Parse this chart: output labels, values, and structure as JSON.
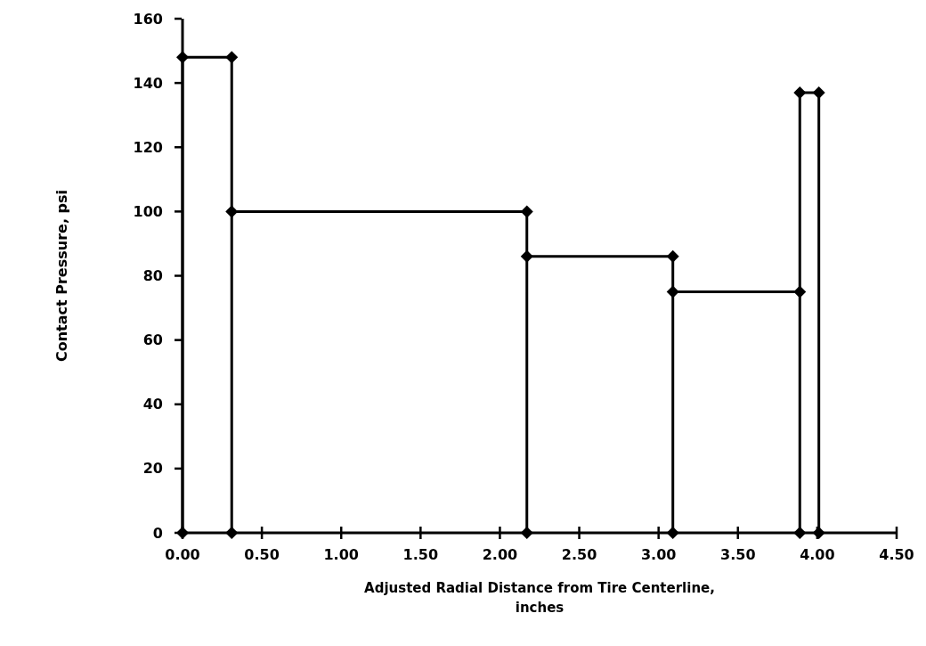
{
  "chart_data": {
    "type": "line",
    "xlabel": "Adjusted Radial Distance from Tire Centerline,\ninches",
    "ylabel": "Contact Pressure, psi",
    "x": [
      0,
      0,
      0.31,
      0.31,
      0.31,
      2.17,
      2.17,
      2.17,
      3.09,
      3.09,
      3.09,
      3.89,
      3.89,
      3.89,
      4.01,
      4.01
    ],
    "series": [
      {
        "color": "#000000",
        "values": [
          0,
          148,
          148,
          0,
          100,
          100,
          0,
          86,
          86,
          0,
          75,
          75,
          0,
          137,
          137,
          0
        ]
      }
    ],
    "xlim": [
      0,
      4.5
    ],
    "xticks": [
      {
        "value": 0,
        "label": "0.00"
      },
      {
        "value": 0.5,
        "label": "0.50"
      },
      {
        "value": 1,
        "label": "1.00"
      },
      {
        "value": 1.5,
        "label": "1.50"
      },
      {
        "value": 2,
        "label": "2.00"
      },
      {
        "value": 2.5,
        "label": "2.50"
      },
      {
        "value": 3,
        "label": "3.00"
      },
      {
        "value": 3.5,
        "label": "3.50"
      },
      {
        "value": 4,
        "label": "4.00"
      },
      {
        "value": 4.5,
        "label": "4.50"
      }
    ],
    "ylim": [
      0,
      160
    ],
    "yticks": [
      0,
      20,
      40,
      60,
      80,
      100,
      120,
      140,
      160
    ],
    "grid": false,
    "marker": "diamond",
    "line_style": "solid"
  }
}
